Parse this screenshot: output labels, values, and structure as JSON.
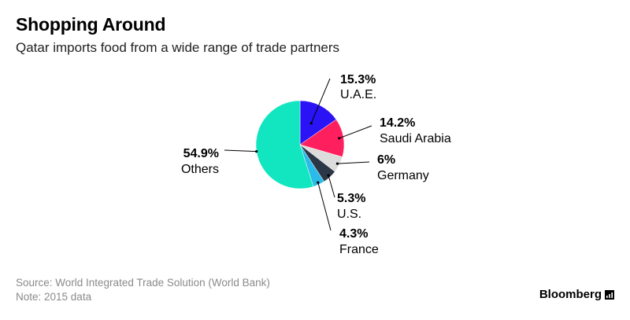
{
  "header": {
    "title": "Shopping Around",
    "subtitle": "Qatar imports food from a wide range of trade partners"
  },
  "chart_data": {
    "type": "pie",
    "title": "Shopping Around",
    "subtitle": "Qatar imports food from a wide range of trade partners",
    "slices": [
      {
        "label": "U.A.E.",
        "value": 15.3,
        "display": "15.3%",
        "color": "#2a13f5"
      },
      {
        "label": "Saudi Arabia",
        "value": 14.2,
        "display": "14.2%",
        "color": "#fe1f5e"
      },
      {
        "label": "Germany",
        "value": 6.0,
        "display": "6%",
        "color": "#dcdcdc"
      },
      {
        "label": "U.S.",
        "value": 5.3,
        "display": "5.3%",
        "color": "#2b3647"
      },
      {
        "label": "France",
        "value": 4.3,
        "display": "4.3%",
        "color": "#2bbbe8"
      },
      {
        "label": "Others",
        "value": 54.9,
        "display": "54.9%",
        "color": "#11e6c0"
      }
    ]
  },
  "footer": {
    "source": "Source: World Integrated Trade Solution (World Bank)",
    "note": "Note: 2015 data",
    "brand": "Bloomberg",
    "brand_icon": "bloomberg-bars-icon"
  }
}
